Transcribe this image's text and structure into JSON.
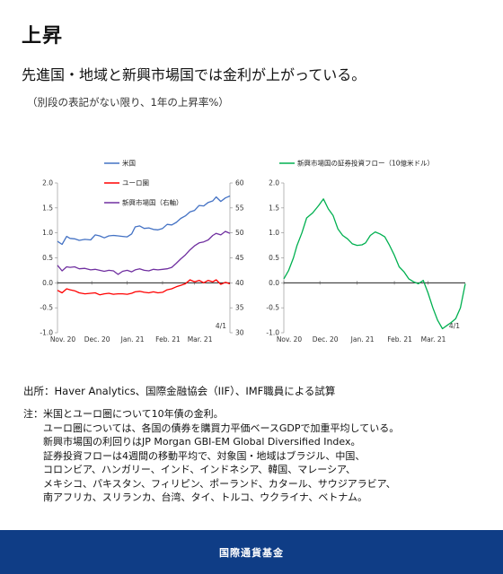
{
  "page": {
    "heading": "上昇",
    "subheading": "先進国・地域と新興市場国では金利が上がっている。",
    "caption": "（別段の表記がない限り、1年の上昇率%）",
    "source": "出所：Haver Analytics、国際金融協会（IIF）、IMF職員による試算",
    "notes_prefix": "注：",
    "notes": [
      "米国とユーロ圏について10年債の金利。",
      "ユーロ圏については、各国の債券を購買力平価ベースGDPで加重平均している。",
      "新興市場国の利回りはJP Morgan GBI-EM Global Diversified Index。",
      "証券投資フローは4週間の移動平均で、対象国・地域はブラジル、中国、",
      "コロンビア、ハンガリー、インド、インドネシア、韓国、マレーシア、",
      "メキシコ、パキスタン、フィリピン、ポーランド、カタール、サウジアラビア、",
      "南アフリカ、スリランカ、台湾、タイ、トルコ、ウクライナ、ベトナム。"
    ],
    "footer": "国際通貨基金"
  },
  "colors": {
    "us": "#4472c4",
    "euro": "#ff0000",
    "em": "#7030a0",
    "flows": "#00b050",
    "footer_bg": "#0f3d86"
  },
  "chart_data": [
    {
      "type": "line",
      "x_tick_labels": [
        "Nov. 20",
        "Dec. 20",
        "Jan. 21",
        "Feb. 21",
        "Mar. 21"
      ],
      "x_range": [
        "2020-11-01",
        "2021-04-01"
      ],
      "ylim": [
        -1.0,
        2.0
      ],
      "y_ticks": [
        -1.0,
        -0.5,
        0.0,
        0.5,
        1.0,
        1.5,
        2.0
      ],
      "y2lim": [
        30,
        60
      ],
      "y2_ticks": [
        30,
        35,
        40,
        45,
        50,
        55,
        60
      ],
      "annotation": "4/1",
      "legend_position": "top-left",
      "series": [
        {
          "name": "米国",
          "axis": "left",
          "color": "#4472c4",
          "x": [
            "2020-11-01",
            "2020-11-05",
            "2020-11-09",
            "2020-11-12",
            "2020-11-16",
            "2020-11-20",
            "2020-11-25",
            "2020-11-30",
            "2020-12-04",
            "2020-12-08",
            "2020-12-12",
            "2020-12-16",
            "2020-12-20",
            "2020-12-24",
            "2020-12-28",
            "2021-01-01",
            "2021-01-05",
            "2021-01-08",
            "2021-01-12",
            "2021-01-16",
            "2021-01-20",
            "2021-01-24",
            "2021-01-28",
            "2021-02-01",
            "2021-02-05",
            "2021-02-09",
            "2021-02-13",
            "2021-02-17",
            "2021-02-21",
            "2021-02-25",
            "2021-03-01",
            "2021-03-05",
            "2021-03-09",
            "2021-03-13",
            "2021-03-17",
            "2021-03-20",
            "2021-03-24",
            "2021-03-28",
            "2021-04-01"
          ],
          "values": [
            0.83,
            0.77,
            0.93,
            0.89,
            0.88,
            0.85,
            0.87,
            0.86,
            0.96,
            0.94,
            0.9,
            0.94,
            0.95,
            0.94,
            0.93,
            0.92,
            0.98,
            1.12,
            1.14,
            1.09,
            1.1,
            1.07,
            1.06,
            1.09,
            1.17,
            1.16,
            1.21,
            1.29,
            1.34,
            1.42,
            1.45,
            1.55,
            1.54,
            1.61,
            1.64,
            1.72,
            1.63,
            1.7,
            1.74
          ]
        },
        {
          "name": "ユーロ圏",
          "axis": "left",
          "color": "#ff0000",
          "x": [
            "2020-11-01",
            "2020-11-05",
            "2020-11-09",
            "2020-11-12",
            "2020-11-16",
            "2020-11-20",
            "2020-11-25",
            "2020-11-30",
            "2020-12-04",
            "2020-12-08",
            "2020-12-12",
            "2020-12-16",
            "2020-12-20",
            "2020-12-24",
            "2020-12-28",
            "2021-01-01",
            "2021-01-05",
            "2021-01-08",
            "2021-01-12",
            "2021-01-16",
            "2021-01-20",
            "2021-01-24",
            "2021-01-28",
            "2021-02-01",
            "2021-02-05",
            "2021-02-09",
            "2021-02-13",
            "2021-02-17",
            "2021-02-21",
            "2021-02-25",
            "2021-03-01",
            "2021-03-05",
            "2021-03-09",
            "2021-03-13",
            "2021-03-17",
            "2021-03-20",
            "2021-03-24",
            "2021-03-28",
            "2021-04-01"
          ],
          "values": [
            -0.15,
            -0.2,
            -0.12,
            -0.14,
            -0.16,
            -0.2,
            -0.22,
            -0.21,
            -0.2,
            -0.24,
            -0.22,
            -0.21,
            -0.23,
            -0.22,
            -0.22,
            -0.23,
            -0.21,
            -0.18,
            -0.17,
            -0.19,
            -0.2,
            -0.18,
            -0.2,
            -0.19,
            -0.14,
            -0.12,
            -0.08,
            -0.05,
            -0.02,
            0.06,
            0.02,
            0.05,
            0.0,
            0.05,
            0.02,
            0.06,
            -0.03,
            0.01,
            -0.02
          ]
        },
        {
          "name": "新興市場国（右軸）",
          "axis": "right",
          "color": "#7030a0",
          "x": [
            "2020-11-01",
            "2020-11-05",
            "2020-11-09",
            "2020-11-12",
            "2020-11-16",
            "2020-11-20",
            "2020-11-25",
            "2020-11-30",
            "2020-12-04",
            "2020-12-08",
            "2020-12-12",
            "2020-12-16",
            "2020-12-20",
            "2020-12-24",
            "2020-12-28",
            "2021-01-01",
            "2021-01-05",
            "2021-01-08",
            "2021-01-12",
            "2021-01-16",
            "2021-01-20",
            "2021-01-24",
            "2021-01-28",
            "2021-02-01",
            "2021-02-05",
            "2021-02-09",
            "2021-02-13",
            "2021-02-17",
            "2021-02-21",
            "2021-02-25",
            "2021-03-01",
            "2021-03-05",
            "2021-03-09",
            "2021-03-13",
            "2021-03-17",
            "2021-03-20",
            "2021-03-24",
            "2021-03-28",
            "2021-04-01"
          ],
          "values": [
            43.5,
            42.4,
            43.2,
            43.1,
            43.2,
            42.8,
            42.9,
            42.6,
            42.7,
            42.5,
            42.3,
            42.5,
            42.4,
            41.7,
            42.3,
            42.5,
            42.2,
            42.6,
            42.8,
            42.5,
            42.4,
            42.7,
            42.6,
            42.7,
            42.8,
            43.1,
            43.9,
            44.8,
            45.6,
            46.6,
            47.4,
            48.0,
            48.2,
            48.6,
            49.5,
            49.9,
            49.6,
            50.3,
            49.9
          ]
        }
      ]
    },
    {
      "type": "line",
      "x_tick_labels": [
        "Nov. 20",
        "Dec. 20",
        "Jan. 21",
        "Feb. 21",
        "Mar. 21"
      ],
      "x_range": [
        "2020-11-01",
        "2021-04-01"
      ],
      "ylim": [
        -1.0,
        2.0
      ],
      "y_ticks": [
        -1.0,
        -0.5,
        0.0,
        0.5,
        1.0,
        1.5,
        2.0
      ],
      "annotation": "4/1",
      "legend_position": "top",
      "series": [
        {
          "name": "新興市場国の証券投資フロー（10億米ドル）",
          "color": "#00b050",
          "x": [
            "2020-11-01",
            "2020-11-05",
            "2020-11-09",
            "2020-11-12",
            "2020-11-16",
            "2020-11-20",
            "2020-11-25",
            "2020-11-30",
            "2020-12-04",
            "2020-12-08",
            "2020-12-12",
            "2020-12-16",
            "2020-12-20",
            "2020-12-24",
            "2020-12-28",
            "2021-01-01",
            "2021-01-05",
            "2021-01-08",
            "2021-01-12",
            "2021-01-16",
            "2021-01-20",
            "2021-01-24",
            "2021-01-28",
            "2021-02-01",
            "2021-02-05",
            "2021-02-09",
            "2021-02-13",
            "2021-02-17",
            "2021-02-21",
            "2021-02-25",
            "2021-03-01",
            "2021-03-05",
            "2021-03-09",
            "2021-03-13",
            "2021-03-17",
            "2021-03-20",
            "2021-03-24",
            "2021-03-28",
            "2021-04-01"
          ],
          "values": [
            0.08,
            0.25,
            0.5,
            0.75,
            1.0,
            1.3,
            1.4,
            1.55,
            1.68,
            1.48,
            1.35,
            1.08,
            0.95,
            0.88,
            0.78,
            0.75,
            0.76,
            0.8,
            0.95,
            1.02,
            0.98,
            0.92,
            0.75,
            0.55,
            0.32,
            0.22,
            0.08,
            0.02,
            -0.02,
            0.05,
            -0.2,
            -0.5,
            -0.75,
            -0.92,
            -0.85,
            -0.8,
            -0.72,
            -0.5,
            -0.02
          ]
        }
      ]
    }
  ]
}
